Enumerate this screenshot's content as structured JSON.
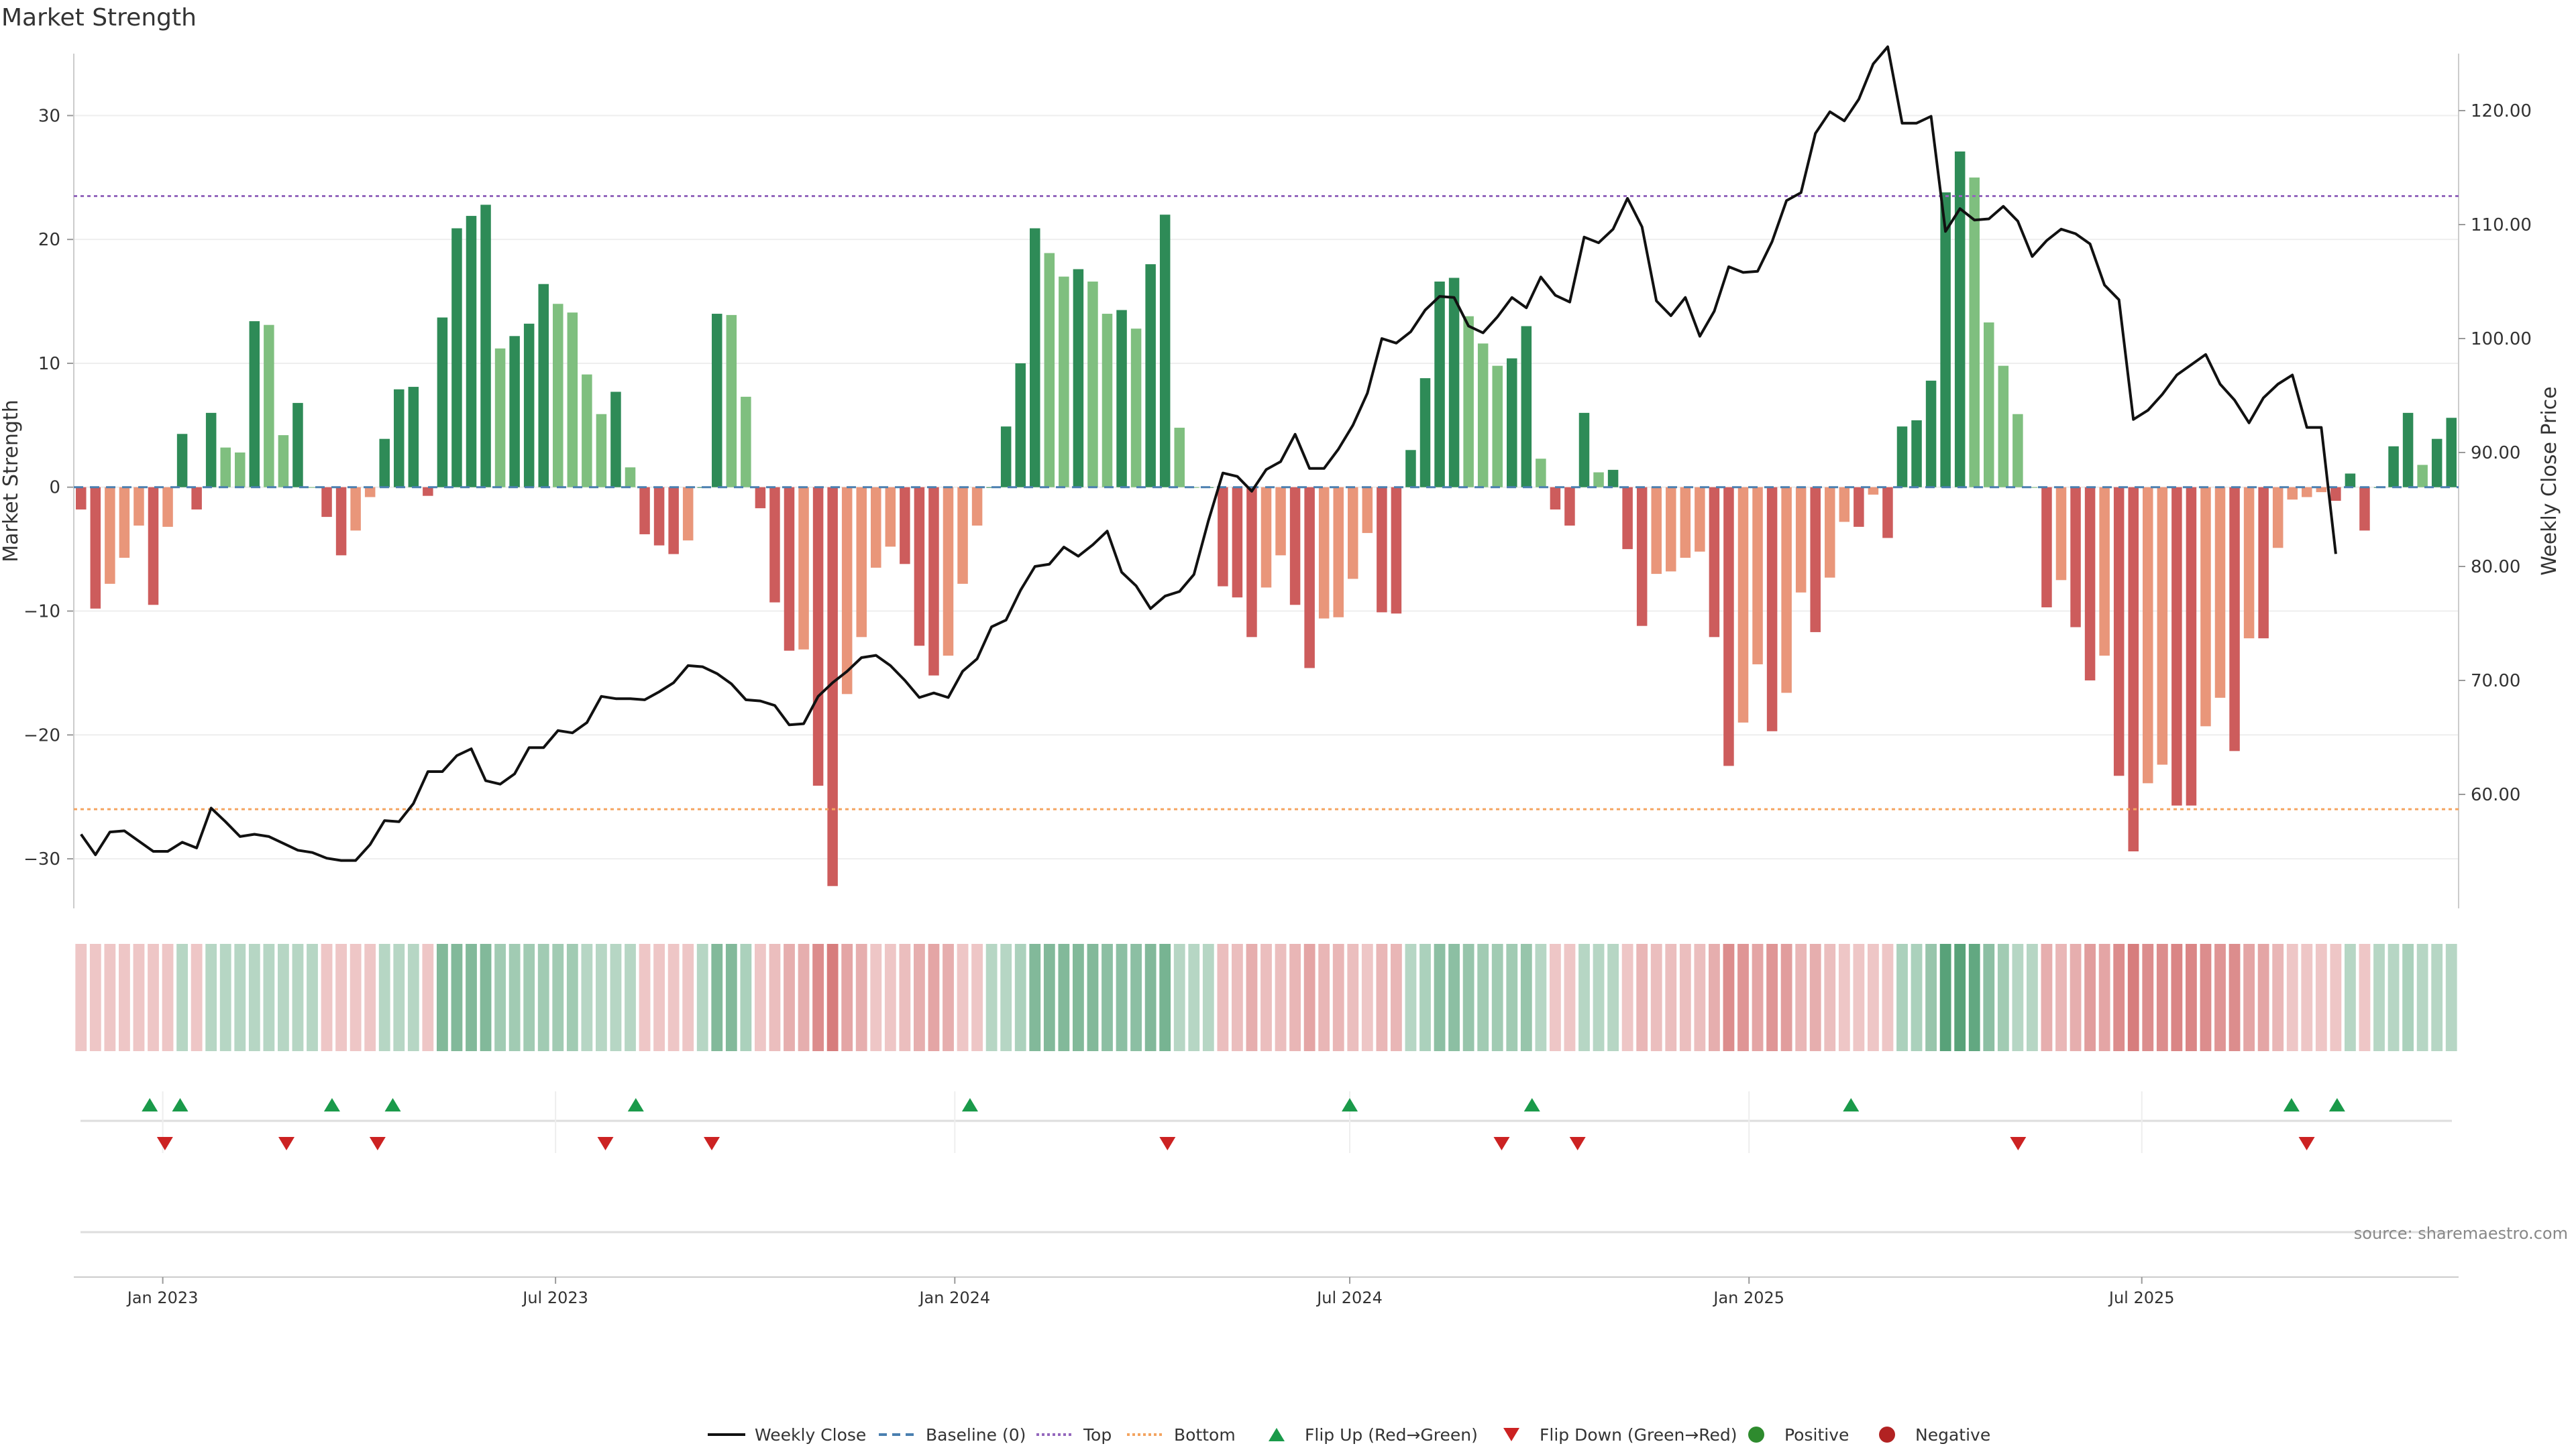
{
  "title": "Market Strength",
  "source": "source: sharemaestro.com",
  "colors": {
    "pos_strong": "#2e8b57",
    "pos_light": "#7fbf7f",
    "neg_strong": "#cd5c5c",
    "neg_light": "#e9967a",
    "price": "#111111",
    "baseline": "#4a7fb0",
    "top_line": "#9467bd",
    "bottom_line": "#f4a460",
    "flip_up": "#1a9a4a",
    "flip_down": "#cc2222",
    "positive": "#2e8b2e",
    "negative": "#b22222"
  },
  "chart_data": {
    "type": "bar",
    "title": "Market Strength",
    "ylabel": "Market Strength",
    "y2label": "Weekly Close Price",
    "ylim": [
      -34,
      35
    ],
    "y2lim": [
      50,
      125
    ],
    "yticks": [
      30,
      20,
      10,
      0,
      -10,
      -20,
      -30
    ],
    "y2ticks": [
      "120.00",
      "110.00",
      "100.00",
      "90.00",
      "80.00",
      "70.00",
      "60.00"
    ],
    "top_level": 23.5,
    "bottom_level": -26,
    "x_start": "2022-11-21",
    "x_end": "2025-11-24",
    "xticks": [
      {
        "date": "2023-01-01",
        "label": "Jan 2023"
      },
      {
        "date": "2023-07-01",
        "label": "Jul 2023"
      },
      {
        "date": "2024-01-01",
        "label": "Jan 2024"
      },
      {
        "date": "2024-07-01",
        "label": "Jul 2024"
      },
      {
        "date": "2025-01-01",
        "label": "Jan 2025"
      },
      {
        "date": "2025-07-01",
        "label": "Jul 2025"
      }
    ],
    "strength": [
      -1.8,
      -9.8,
      -7.8,
      -5.7,
      -3.1,
      -9.5,
      -3.2,
      4.3,
      -1.8,
      6,
      3.2,
      2.8,
      13.4,
      13.1,
      4.2,
      6.8,
      0,
      -2.4,
      -5.5,
      -3.5,
      -0.8,
      3.9,
      7.9,
      8.1,
      -0.7,
      13.7,
      20.9,
      21.9,
      22.8,
      11.2,
      12.2,
      13.2,
      16.4,
      14.8,
      14.1,
      9.1,
      5.9,
      7.7,
      1.6,
      -3.8,
      -4.7,
      -5.4,
      -4.3,
      0,
      14,
      13.9,
      7.3,
      -1.7,
      -9.3,
      -13.2,
      -13.1,
      -24.1,
      -32.2,
      -16.7,
      -12.1,
      -6.5,
      -4.8,
      -6.2,
      -12.8,
      -15.2,
      -13.6,
      -7.8,
      -3.1,
      0,
      4.9,
      10,
      20.9,
      18.9,
      17,
      17.6,
      16.6,
      14,
      14.3,
      12.8,
      18,
      22,
      4.8,
      0,
      0,
      -8,
      -8.9,
      -12.1,
      -8.1,
      -5.5,
      -9.5,
      -14.6,
      -10.6,
      -10.5,
      -7.4,
      -3.7,
      -10.1,
      -10.2,
      3,
      8.8,
      16.6,
      16.9,
      13.8,
      11.6,
      9.8,
      10.4,
      13,
      2.3,
      -1.8,
      -3.1,
      6,
      1.2,
      1.4,
      -5,
      -11.2,
      -7,
      -6.8,
      -5.7,
      -5.2,
      -12.1,
      -22.5,
      -19,
      -14.3,
      -19.7,
      -16.6,
      -8.5,
      -11.7,
      -7.3,
      -2.8,
      -3.2,
      -0.6,
      -4.1,
      4.9,
      5.4,
      8.6,
      23.8,
      27.1,
      25,
      13.3,
      9.8,
      5.9,
      0,
      -9.7,
      -7.5,
      -11.3,
      -15.6,
      -13.6,
      -23.3,
      -29.4,
      -23.9,
      -22.4,
      -25.7,
      -25.7,
      -19.3,
      -17,
      -21.3,
      -12.2,
      -12.2,
      -4.9,
      -1,
      -0.8,
      -0.4,
      -1.1,
      1.1,
      -3.5,
      0,
      3.3,
      6,
      1.8,
      3.9,
      5.6
    ],
    "price": [
      56.5,
      54.7,
      56.7,
      56.8,
      55.9,
      55,
      55,
      55.8,
      55.3,
      58.8,
      57.6,
      56.3,
      56.5,
      56.3,
      55.7,
      55.1,
      54.9,
      54.4,
      54.2,
      54.2,
      55.6,
      57.7,
      57.6,
      59.2,
      62,
      62,
      63.4,
      64,
      61.2,
      60.9,
      61.8,
      64.1,
      64.1,
      65.6,
      65.4,
      66.3,
      68.6,
      68.4,
      68.4,
      68.3,
      69,
      69.8,
      71.3,
      71.2,
      70.6,
      69.7,
      68.3,
      68.2,
      67.8,
      66.1,
      66.2,
      68.6,
      69.8,
      70.8,
      72,
      72.2,
      71.3,
      70,
      68.5,
      68.9,
      68.5,
      70.8,
      71.9,
      74.7,
      75.3,
      77.9,
      80,
      80.2,
      81.7,
      80.9,
      81.9,
      83.1,
      79.5,
      78.3,
      76.3,
      77.4,
      77.8,
      79.3,
      84,
      88.2,
      87.9,
      86.6,
      88.5,
      89.2,
      91.6,
      88.6,
      88.6,
      90.3,
      92.4,
      95.2,
      100,
      99.6,
      100.6,
      102.5,
      103.7,
      103.6,
      101.1,
      100.5,
      101.9,
      103.6,
      102.7,
      105.4,
      103.8,
      103.2,
      108.9,
      108.4,
      109.6,
      112.3,
      109.8,
      103.3,
      102,
      103.6,
      100.2,
      102.4,
      106.3,
      105.8,
      105.9,
      108.5,
      112.1,
      112.8,
      118,
      119.9,
      119.1,
      121,
      124.1,
      125.6,
      118.9,
      118.9,
      119.5,
      109.4,
      111.4,
      110.4,
      110.5,
      111.6,
      110.3,
      107.2,
      108.6,
      109.6,
      109.2,
      108.3,
      104.7,
      103.4,
      92.9,
      93.7,
      95.1,
      96.8,
      97.7,
      98.6,
      96,
      94.6,
      92.6,
      94.8,
      96,
      96.8,
      92.2,
      92.2,
      81.1
    ],
    "shade_levels": [
      0.35,
      0.35,
      0.35,
      0.35,
      0.35,
      0.35,
      0.35,
      0.35,
      0.35,
      0.35,
      0.35,
      0.35,
      0.35,
      0.35,
      0.35,
      0.35,
      0.35,
      0.35,
      0.35,
      0.35,
      0.35,
      0.35,
      0.35,
      0.35,
      0.35,
      0.6,
      0.6,
      0.6,
      0.6,
      0.45,
      0.45,
      0.45,
      0.45,
      0.45,
      0.45,
      0.35,
      0.35,
      0.35,
      0.35,
      0.35,
      0.35,
      0.35,
      0.35,
      0.35,
      0.6,
      0.6,
      0.4,
      0.35,
      0.4,
      0.5,
      0.5,
      0.7,
      0.8,
      0.55,
      0.5,
      0.35,
      0.35,
      0.4,
      0.5,
      0.55,
      0.5,
      0.35,
      0.35,
      0.35,
      0.35,
      0.4,
      0.6,
      0.6,
      0.6,
      0.6,
      0.6,
      0.55,
      0.55,
      0.55,
      0.6,
      0.65,
      0.35,
      0.35,
      0.35,
      0.4,
      0.4,
      0.5,
      0.4,
      0.4,
      0.45,
      0.55,
      0.45,
      0.45,
      0.4,
      0.35,
      0.45,
      0.45,
      0.35,
      0.4,
      0.55,
      0.55,
      0.5,
      0.45,
      0.45,
      0.45,
      0.5,
      0.35,
      0.35,
      0.35,
      0.35,
      0.35,
      0.35,
      0.35,
      0.45,
      0.4,
      0.4,
      0.4,
      0.4,
      0.5,
      0.7,
      0.65,
      0.55,
      0.65,
      0.6,
      0.45,
      0.5,
      0.4,
      0.35,
      0.35,
      0.35,
      0.35,
      0.4,
      0.4,
      0.5,
      0.8,
      0.8,
      0.75,
      0.55,
      0.45,
      0.35,
      0.35,
      0.5,
      0.45,
      0.5,
      0.6,
      0.55,
      0.7,
      0.8,
      0.7,
      0.7,
      0.75,
      0.75,
      0.7,
      0.65,
      0.7,
      0.55,
      0.55,
      0.45,
      0.35,
      0.35,
      0.35,
      0.35,
      0.35,
      0.35,
      0.35,
      0.35,
      0.4,
      0.35,
      0.35,
      0.35
    ],
    "flip_up_dates": [
      "2022-12-26",
      "2023-01-09",
      "2023-03-20",
      "2023-04-17",
      "2023-08-07",
      "2024-01-08",
      "2024-07-01",
      "2024-09-23",
      "2025-02-17",
      "2025-09-08",
      "2025-09-29"
    ],
    "flip_down_dates": [
      "2023-01-02",
      "2023-02-27",
      "2023-04-10",
      "2023-07-24",
      "2023-09-11",
      "2024-04-08",
      "2024-09-09",
      "2024-10-14",
      "2025-05-05",
      "2025-09-15"
    ],
    "legend": [
      "Weekly Close",
      "Baseline (0)",
      "Top",
      "Bottom",
      "Flip Up (Red→Green)",
      "Flip Down (Green→Red)",
      "Positive",
      "Negative"
    ]
  }
}
